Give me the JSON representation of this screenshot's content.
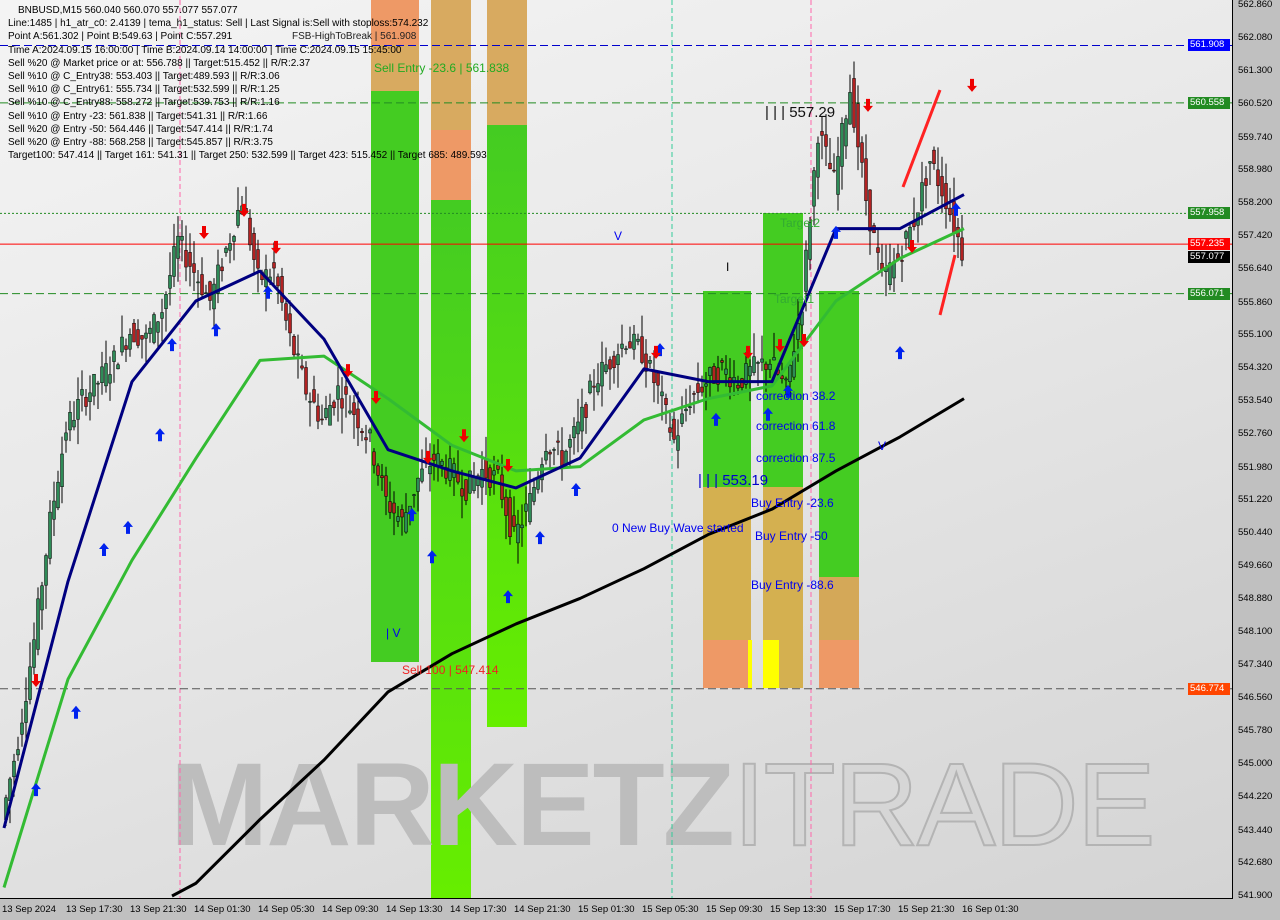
{
  "header": {
    "symbol_line": "BNBUSD,M15  560.040 560.070 557.077 557.077",
    "lines": [
      "Line:1485 | h1_atr_c0: 2.4139 | tema_h1_status: Sell | Last Signal is:Sell with stoploss:574.232",
      "Point A:561.302 | Point B:549.63 | Point C:557.291",
      "Time A:2024.09.15 16:00:00 | Time B:2024.09.14 14:00:00 | Time C:2024.09.15 15:45:00",
      "Sell %20 @ Market price or at: 556.788 || Target:515.452 || R/R:2.37",
      "Sell %10 @ C_Entry38: 553.403 || Target:489.593 || R/R:3.06",
      "Sell %10 @ C_Entry61: 555.734 || Target:532.599 || R/R:1.25",
      "Sell %10 @ C_Entry88: 558.272 || Target:539.753 || R/R:1.16",
      "Sell %10 @ Entry -23: 561.838 || Target:541.31 || R/R:1.66",
      "Sell %20 @ Entry -50: 564.446 || Target:547.414 || R/R:1.74",
      "Sell %20 @ Entry -88: 568.258 || Target:545.857 || R/R:3.75",
      "Target100: 547.414 || Target 161: 541.31 || Target 250: 532.599 || Target 423: 515.452 || Target 685: 489.593"
    ]
  },
  "annotations": {
    "fsb": "FSB-HighToBreak | 561.908",
    "sell_entry": "Sell Entry -23.6 | 561.838",
    "level_high": "| | | 557.29",
    "level_low": "| | | 553.19",
    "corr38": "correction 38.2",
    "corr61": "correction 61.8",
    "corr87": "correction 87.5",
    "buy236": "Buy Entry -23.6",
    "buy50": "Buy Entry -50",
    "buy886": "Buy Entry -88.6",
    "new_wave": "0 New Buy Wave started",
    "sell100": "Sell 100 | 547.414",
    "target1": "Target1",
    "target2": "Target2",
    "v1": "V",
    "v2": "| V",
    "v3": "V",
    "tick_mark": "I"
  },
  "watermark": {
    "part1": "MARKETZ",
    "part2": "ITRADE"
  },
  "price_tags": [
    {
      "value": "561.908",
      "color": "#0000ff"
    },
    {
      "value": "560.558",
      "color": "#228b22"
    },
    {
      "value": "557.958",
      "color": "#228b22"
    },
    {
      "value": "557.235",
      "color": "#ff0000"
    },
    {
      "value": "557.077",
      "color": "#000000"
    },
    {
      "value": "556.071",
      "color": "#228b22"
    },
    {
      "value": "546.774",
      "color": "#ff4500"
    }
  ],
  "chart_data": {
    "type": "candlestick",
    "symbol": "BNBUSD",
    "timeframe": "M15",
    "y_ticks": [
      "562.860",
      "562.080",
      "561.300",
      "560.520",
      "559.740",
      "558.980",
      "558.200",
      "557.420",
      "556.640",
      "555.860",
      "555.100",
      "554.320",
      "553.540",
      "552.760",
      "551.980",
      "551.220",
      "550.440",
      "549.660",
      "548.880",
      "548.100",
      "547.340",
      "546.560",
      "545.780",
      "545.000",
      "544.220",
      "543.440",
      "542.680",
      "541.900"
    ],
    "ylim": [
      541.9,
      562.86
    ],
    "x_ticks": [
      "13 Sep 2024",
      "13 Sep 17:30",
      "13 Sep 21:30",
      "14 Sep 01:30",
      "14 Sep 05:30",
      "14 Sep 09:30",
      "14 Sep 13:30",
      "14 Sep 17:30",
      "14 Sep 21:30",
      "15 Sep 01:30",
      "15 Sep 05:30",
      "15 Sep 09:30",
      "15 Sep 13:30",
      "15 Sep 17:30",
      "15 Sep 21:30",
      "16 Sep 01:30"
    ],
    "close_hourly": [
      [
        "13 Sep 13:30",
        543.7
      ],
      [
        "13 Sep 14:30",
        545.6
      ],
      [
        "13 Sep 15:30",
        547.9
      ],
      [
        "13 Sep 16:30",
        550.7
      ],
      [
        "13 Sep 17:30",
        552.9
      ],
      [
        "13 Sep 18:30",
        553.6
      ],
      [
        "13 Sep 19:30",
        554.0
      ],
      [
        "13 Sep 20:30",
        554.5
      ],
      [
        "13 Sep 21:30",
        555.2
      ],
      [
        "13 Sep 22:30",
        555.0
      ],
      [
        "13 Sep 23:30",
        555.7
      ],
      [
        "14 Sep 00:30",
        557.3
      ],
      [
        "14 Sep 01:30",
        556.6
      ],
      [
        "14 Sep 02:30",
        555.9
      ],
      [
        "14 Sep 03:30",
        557.1
      ],
      [
        "14 Sep 04:30",
        558.3
      ],
      [
        "14 Sep 05:30",
        556.4
      ],
      [
        "14 Sep 06:30",
        556.6
      ],
      [
        "14 Sep 07:30",
        555.0
      ],
      [
        "14 Sep 08:30",
        553.8
      ],
      [
        "14 Sep 09:30",
        553.1
      ],
      [
        "14 Sep 10:30",
        553.8
      ],
      [
        "14 Sep 11:30",
        553.3
      ],
      [
        "14 Sep 12:30",
        552.6
      ],
      [
        "14 Sep 13:30",
        551.2
      ],
      [
        "14 Sep 14:30",
        550.7
      ],
      [
        "14 Sep 15:30",
        551.7
      ],
      [
        "14 Sep 16:30",
        552.2
      ],
      [
        "14 Sep 17:30",
        551.9
      ],
      [
        "14 Sep 18:30",
        551.5
      ],
      [
        "14 Sep 19:30",
        551.9
      ],
      [
        "14 Sep 20:30",
        551.7
      ],
      [
        "14 Sep 21:30",
        550.3
      ],
      [
        "14 Sep 22:30",
        551.2
      ],
      [
        "14 Sep 23:30",
        552.6
      ],
      [
        "15 Sep 00:30",
        552.2
      ],
      [
        "15 Sep 01:30",
        552.9
      ],
      [
        "15 Sep 02:30",
        554.0
      ],
      [
        "15 Sep 03:30",
        554.5
      ],
      [
        "15 Sep 04:30",
        555.0
      ],
      [
        "15 Sep 05:30",
        554.7
      ],
      [
        "15 Sep 06:30",
        553.8
      ],
      [
        "15 Sep 07:30",
        552.6
      ],
      [
        "15 Sep 08:30",
        553.6
      ],
      [
        "15 Sep 09:30",
        554.0
      ],
      [
        "15 Sep 10:30",
        554.3
      ],
      [
        "15 Sep 11:30",
        554.0
      ],
      [
        "15 Sep 12:30",
        554.3
      ],
      [
        "15 Sep 13:30",
        554.5
      ],
      [
        "15 Sep 14:30",
        553.8
      ],
      [
        "15 Sep 15:30",
        555.9
      ],
      [
        "15 Sep 16:30",
        559.9
      ],
      [
        "15 Sep 17:30",
        558.7
      ],
      [
        "15 Sep 18:30",
        560.9
      ],
      [
        "15 Sep 19:30",
        558.3
      ],
      [
        "15 Sep 20:30",
        556.4
      ],
      [
        "15 Sep 21:30",
        556.9
      ],
      [
        "15 Sep 22:30",
        557.8
      ],
      [
        "15 Sep 23:30",
        559.2
      ],
      [
        "16 Sep 00:30",
        558.3
      ],
      [
        "16 Sep 01:30",
        557.077
      ]
    ],
    "ma_slow": {
      "color": "#000000",
      "points": [
        [
          "14 Sep 00:00",
          541.9
        ],
        [
          "14 Sep 01:30",
          542.2
        ],
        [
          "14 Sep 05:30",
          543.7
        ],
        [
          "14 Sep 09:30",
          545.1
        ],
        [
          "14 Sep 13:30",
          546.7
        ],
        [
          "14 Sep 17:30",
          547.6
        ],
        [
          "14 Sep 21:30",
          548.3
        ],
        [
          "15 Sep 01:30",
          548.9
        ],
        [
          "15 Sep 05:30",
          549.6
        ],
        [
          "15 Sep 09:30",
          550.4
        ],
        [
          "15 Sep 13:30",
          551.0
        ],
        [
          "15 Sep 17:30",
          551.9
        ],
        [
          "15 Sep 21:30",
          552.7
        ],
        [
          "16 Sep 01:30",
          553.6
        ]
      ]
    },
    "ma_mid": {
      "color": "#33bb33",
      "points": [
        [
          "13 Sep 13:30",
          542.1
        ],
        [
          "13 Sep 17:30",
          547.0
        ],
        [
          "13 Sep 21:30",
          549.8
        ],
        [
          "14 Sep 01:30",
          552.2
        ],
        [
          "14 Sep 05:30",
          554.5
        ],
        [
          "14 Sep 09:30",
          554.6
        ],
        [
          "14 Sep 13:30",
          553.6
        ],
        [
          "14 Sep 17:30",
          552.5
        ],
        [
          "14 Sep 21:30",
          551.9
        ],
        [
          "15 Sep 01:30",
          552.0
        ],
        [
          "15 Sep 05:30",
          553.1
        ],
        [
          "15 Sep 09:30",
          553.6
        ],
        [
          "15 Sep 13:30",
          553.9
        ],
        [
          "15 Sep 17:30",
          555.9
        ],
        [
          "15 Sep 21:30",
          556.9
        ],
        [
          "16 Sep 01:30",
          557.6
        ]
      ]
    },
    "ma_fast": {
      "color": "#000080",
      "points": [
        [
          "13 Sep 13:30",
          543.5
        ],
        [
          "13 Sep 17:30",
          549.3
        ],
        [
          "13 Sep 21:30",
          554.0
        ],
        [
          "14 Sep 01:30",
          555.9
        ],
        [
          "14 Sep 05:30",
          556.6
        ],
        [
          "14 Sep 09:30",
          555.0
        ],
        [
          "14 Sep 13:30",
          552.4
        ],
        [
          "14 Sep 17:30",
          551.9
        ],
        [
          "14 Sep 21:30",
          551.5
        ],
        [
          "15 Sep 01:30",
          552.2
        ],
        [
          "15 Sep 05:30",
          554.3
        ],
        [
          "15 Sep 09:30",
          554.0
        ],
        [
          "15 Sep 13:30",
          554.0
        ],
        [
          "15 Sep 17:30",
          557.6
        ],
        [
          "15 Sep 21:30",
          557.6
        ],
        [
          "16 Sep 01:30",
          558.4
        ]
      ]
    },
    "buy_signals": [
      [
        "13 Sep 15:30",
        544.39
      ],
      [
        "13 Sep 18:00",
        546.21
      ],
      [
        "13 Sep 19:45",
        550.04
      ],
      [
        "13 Sep 21:15",
        550.56
      ],
      [
        "13 Sep 23:15",
        552.74
      ],
      [
        "14 Sep 00:00",
        554.86
      ],
      [
        "14 Sep 02:45",
        555.21
      ],
      [
        "14 Sep 06:00",
        556.09
      ],
      [
        "14 Sep 15:00",
        550.86
      ],
      [
        "14 Sep 16:15",
        549.87
      ],
      [
        "14 Sep 21:00",
        548.93
      ],
      [
        "14 Sep 23:00",
        550.32
      ],
      [
        "15 Sep 01:15",
        551.45
      ],
      [
        "15 Sep 06:30",
        554.74
      ],
      [
        "15 Sep 10:00",
        553.1
      ],
      [
        "15 Sep 13:15",
        553.22
      ],
      [
        "15 Sep 14:30",
        553.76
      ],
      [
        "15 Sep 17:30",
        557.5
      ],
      [
        "15 Sep 21:30",
        554.67
      ],
      [
        "16 Sep 01:00",
        558.04
      ]
    ],
    "sell_signals": [
      [
        "13 Sep 15:30",
        546.98
      ],
      [
        "14 Sep 02:00",
        557.52
      ],
      [
        "14 Sep 04:30",
        558.04
      ],
      [
        "14 Sep 06:30",
        557.17
      ],
      [
        "14 Sep 11:00",
        554.27
      ],
      [
        "14 Sep 12:45",
        553.64
      ],
      [
        "14 Sep 16:00",
        552.23
      ],
      [
        "14 Sep 18:15",
        552.74
      ],
      [
        "14 Sep 21:00",
        552.04
      ],
      [
        "15 Sep 06:15",
        554.7
      ],
      [
        "15 Sep 12:00",
        554.7
      ],
      [
        "15 Sep 14:00",
        554.86
      ],
      [
        "15 Sep 15:30",
        554.98
      ],
      [
        "15 Sep 19:30",
        560.51
      ],
      [
        "15 Sep 22:15",
        557.19
      ],
      [
        "16 Sep 02:00",
        560.98
      ]
    ],
    "levels": [
      {
        "price": 561.908,
        "color": "#0000cc",
        "style": "dashed"
      },
      {
        "price": 560.558,
        "color": "#228b22",
        "style": "dashed"
      },
      {
        "price": 557.958,
        "color": "#228b22",
        "style": "dotted"
      },
      {
        "price": 557.235,
        "color": "#ff0000",
        "style": "solid"
      },
      {
        "price": 556.071,
        "color": "#228b22",
        "style": "dashed"
      },
      {
        "price": 546.774,
        "color": "#555555",
        "style": "dashed"
      }
    ]
  }
}
